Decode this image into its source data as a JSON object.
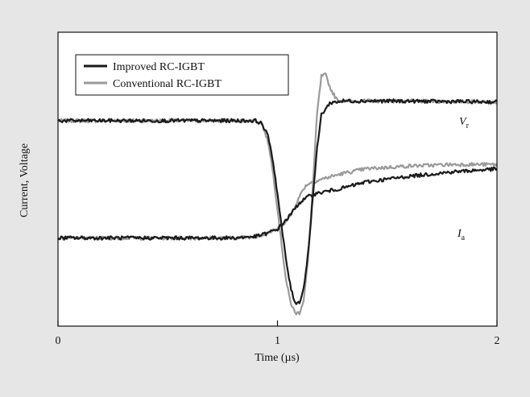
{
  "chart_data": {
    "type": "line",
    "xlabel": "Time (µs)",
    "ylabel": "Current, Voltage",
    "xlim": [
      0,
      2
    ],
    "ylim": [
      0,
      1
    ],
    "xticks": [
      0,
      1,
      2
    ],
    "xtick_labels": [
      "0",
      "1",
      "2"
    ],
    "yticks": [],
    "grid": false,
    "legend": {
      "placement": "top-left",
      "entries": [
        "Improved RC-IGBT",
        "Conventional RC-IGBT"
      ]
    },
    "curve_labels": [
      {
        "main": "V",
        "sub": "r",
        "x": 1.78,
        "y": 0.78
      },
      {
        "main": "I",
        "sub": "a",
        "x": 1.78,
        "y": 0.23
      }
    ],
    "colors": {
      "improved": "#1a1a1a",
      "conventional": "#9a9a9a",
      "background": "#e6e6e6",
      "plot": "#ffffff"
    },
    "series": [
      {
        "name": "Improved RC-IGBT",
        "group": "Vr",
        "x": [
          0.0,
          0.9,
          0.93,
          0.96,
          0.98,
          1.0,
          1.02,
          1.04,
          1.06,
          1.08,
          1.1,
          1.12,
          1.14,
          1.16,
          1.18,
          1.2,
          1.24,
          1.3,
          1.5,
          2.0
        ],
        "y": [
          0.699,
          0.699,
          0.689,
          0.64,
          0.56,
          0.45,
          0.33,
          0.22,
          0.13,
          0.08,
          0.08,
          0.13,
          0.25,
          0.43,
          0.6,
          0.72,
          0.76,
          0.766,
          0.766,
          0.763
        ]
      },
      {
        "name": "Conventional RC-IGBT",
        "group": "Vr",
        "x": [
          0.0,
          0.9,
          0.93,
          0.96,
          0.98,
          1.0,
          1.02,
          1.04,
          1.06,
          1.08,
          1.1,
          1.12,
          1.14,
          1.16,
          1.18,
          1.2,
          1.22,
          1.24,
          1.27,
          1.3,
          1.5,
          2.0
        ],
        "y": [
          0.699,
          0.699,
          0.688,
          0.62,
          0.52,
          0.4,
          0.27,
          0.15,
          0.08,
          0.045,
          0.045,
          0.09,
          0.23,
          0.46,
          0.72,
          0.85,
          0.855,
          0.81,
          0.77,
          0.766,
          0.766,
          0.763
        ]
      },
      {
        "name": "Improved RC-IGBT",
        "group": "Ia",
        "x": [
          0.0,
          0.8,
          0.9,
          0.95,
          1.0,
          1.05,
          1.1,
          1.15,
          1.2,
          1.3,
          1.4,
          1.6,
          1.8,
          2.0
        ],
        "y": [
          0.3,
          0.3,
          0.305,
          0.315,
          0.33,
          0.37,
          0.42,
          0.445,
          0.455,
          0.47,
          0.49,
          0.51,
          0.525,
          0.535
        ]
      },
      {
        "name": "Conventional RC-IGBT",
        "group": "Ia",
        "x": [
          0.0,
          0.8,
          0.9,
          0.95,
          1.0,
          1.05,
          1.1,
          1.12,
          1.14,
          1.16,
          1.2,
          1.25,
          1.3,
          1.4,
          1.6,
          1.8,
          2.0
        ],
        "y": [
          0.3,
          0.3,
          0.305,
          0.315,
          0.33,
          0.365,
          0.44,
          0.47,
          0.485,
          0.49,
          0.5,
          0.51,
          0.52,
          0.535,
          0.545,
          0.55,
          0.55
        ]
      }
    ]
  }
}
